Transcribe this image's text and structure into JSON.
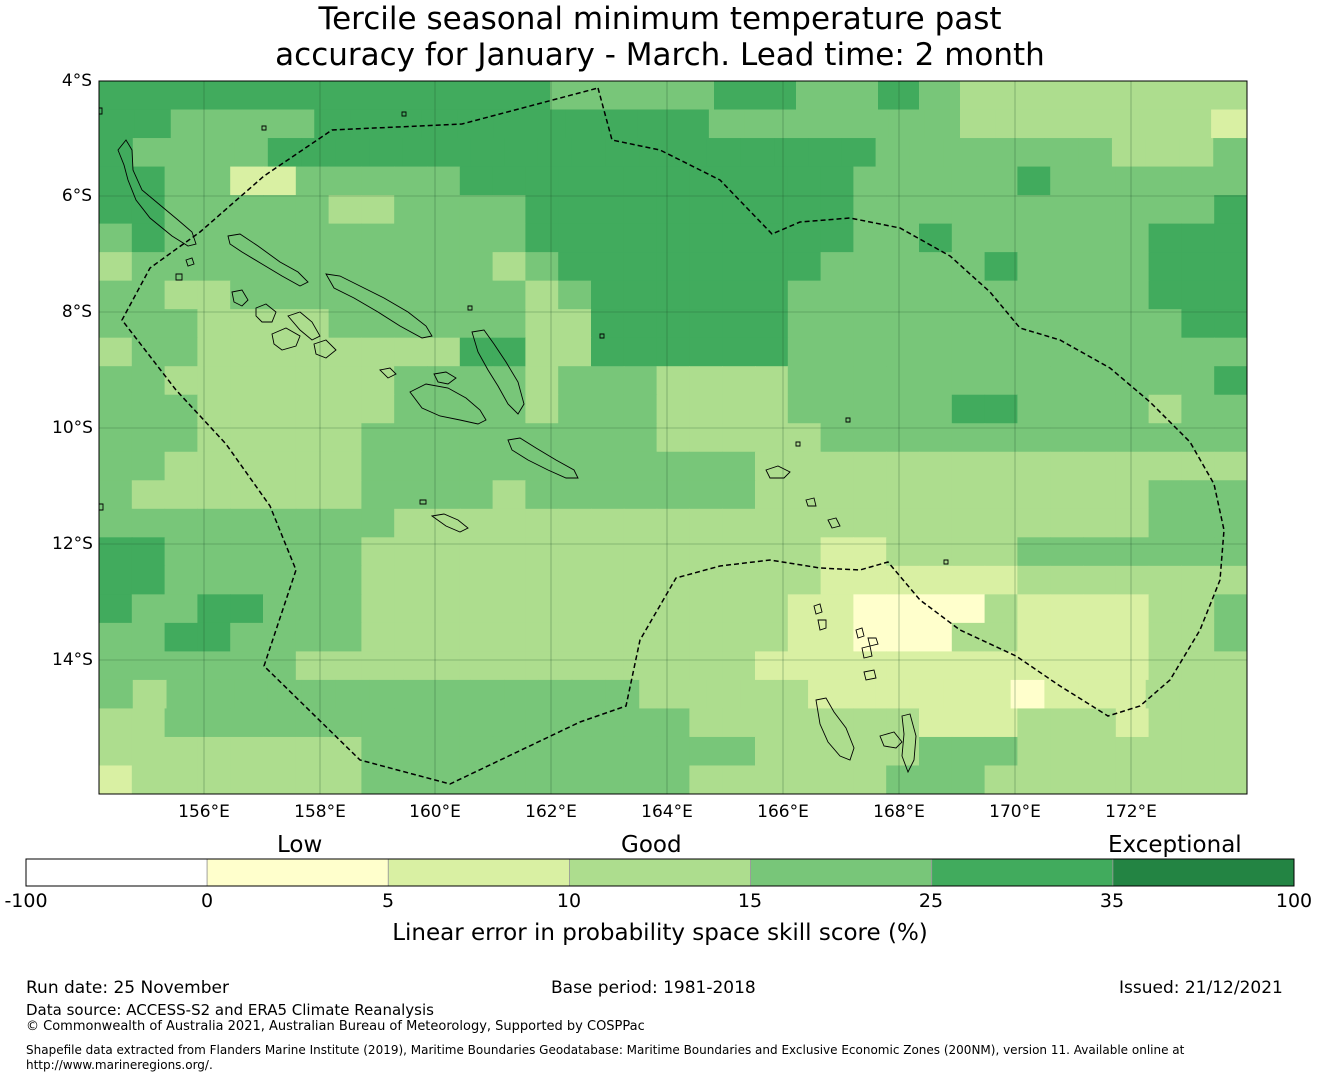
{
  "title_line1": "Tercile seasonal minimum temperature past",
  "title_line2": "accuracy for January - March. Lead time: 2 month",
  "map": {
    "lat_labels": [
      "4°S",
      "6°S",
      "8°S",
      "10°S",
      "12°S",
      "14°S"
    ],
    "lon_labels": [
      "156°E",
      "158°E",
      "160°E",
      "162°E",
      "164°E",
      "166°E",
      "168°E",
      "170°E",
      "172°E"
    ],
    "grid_rows": [
      "FFFFFFFFFFFEEEEFFEEFEDDDDDDD",
      "FFEEEEFFFFFFFFFFFEEEEEEEDDDDDDDC",
      "FEEEEFFFFFFFFFFFFFFFFFFEEEEEEEDDDE",
      "FFEECCEEEEEFFFFFFFFFFFFEEEEEFEEEEEE",
      "FFEEEEEDDEEEEFFFFFFFFFFEEEEEEEEEEEF",
      "EFEEEEEEEEEEEFFFFFFFFFFEEFEEEEEEFFF",
      "DEEEEEEEEEEEDEFFFFFFFFEEEEEFEEEEFFF",
      "EEDDEEEEEEEEEDEFFFFFFEEEEEEEEEEEFFF",
      "EEEDDDDEEEEEEDDFFFFFFEEEEEEEEEEEEFF",
      "DEEDDDDDDDDFFDDFFFFFFEEEEEEEEEEEEEE",
      "EEDDDDDDDEEEEDEEEDDDDEEEEEEEEEEEEEF",
      "EEEDDDDDDEEEEDEEEDDDDEEEEEFFEEEEDEE",
      "EEEDDDDDEEEEEEEEEDDDDDEEEEEEEEEEEEE",
      "EEDDDDDDEEEEEEEEEEEEDDDDDDDDDDDDDDD",
      "EDDDDDDDEEEEDEEEEEEEDDDDDDDDDDDDEEE",
      "EEEEEEEEEDDDDDDDDDDDDDDDDDDDDDDDEEE",
      "FFEEEEEEDDDDDDDDDDDDDDCCDDDDEEEEEEE",
      "FFEEEEEEDDDDDDDDDDDDDDCCCCCCDDDDDDD",
      "FEEFFEEEDDDDDDDDDDDDDCCBBBBDCCCCDDE",
      "EEFFEEEEDDDDDDDDDDDDDCCBBBDDCCCCDDE",
      "EEEEEEDDDDDDDDDDDDDDCCCCCCCCCCCCDDD",
      "EDEEEEEEEEEEEEEEDDDDDCCCCCCBCCCDDD",
      "DDEEEEEEEEEEEEEEEEDDDDDDDCCCDDDCDDD",
      "DDDDDDDDEEEEEEEEEEEEDDDDDEEEDDDDDDD",
      "CDDDDDDDEEEEEEEEEEDDDDDDEEEDDDDDDDD"
    ]
  },
  "colorbar": {
    "low_label": "Low",
    "good_label": "Good",
    "exceptional_label": "Exceptional",
    "ticks": [
      "-100",
      "0",
      "5",
      "10",
      "15",
      "25",
      "35",
      "100"
    ],
    "colors": [
      "#ffffff",
      "#ffffcc",
      "#d9f0a3",
      "#addd8e",
      "#78c679",
      "#41ab5d",
      "#238443"
    ],
    "title": "Linear error in probability space skill score (%)"
  },
  "footer": {
    "run_date": "Run date: 25 November",
    "base_period": "Base period: 1981-2018",
    "issued": "Issued: 21/12/2021",
    "data_source": "Data source: ACCESS-S2 and ERA5 Climate Reanalysis",
    "copyright": "© Commonwealth of Australia 2021, Australian Bureau of Meteorology, Supported by COSPPac",
    "shapefile_line1": "Shapefile data extracted from Flanders Marine Institute (2019), Maritime Boundaries Geodatabase: Maritime Boundaries and Exclusive Economic Zones (200NM), version 11. Available online at",
    "shapefile_line2": "http://www.marineregions.org/."
  }
}
